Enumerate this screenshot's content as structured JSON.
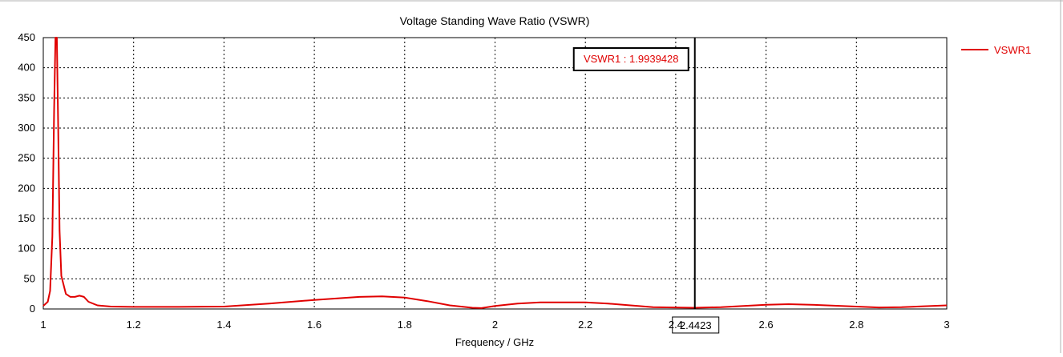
{
  "chart_data": {
    "type": "line",
    "title": "Voltage Standing Wave Ratio (VSWR)",
    "xlabel": "Frequency / GHz",
    "ylabel": "",
    "xlim": [
      1,
      3
    ],
    "ylim": [
      0,
      450
    ],
    "x_ticks": [
      "1",
      "1.2",
      "1.4",
      "1.6",
      "1.8",
      "2",
      "2.2",
      "2.4",
      "2.6",
      "2.8",
      "3"
    ],
    "y_ticks": [
      "0",
      "50",
      "100",
      "150",
      "200",
      "250",
      "300",
      "350",
      "400",
      "450"
    ],
    "grid": true,
    "legend_position": "right",
    "series": [
      {
        "name": "VSWR1",
        "color": "#e00000",
        "points": [
          [
            1.0,
            5
          ],
          [
            1.01,
            12
          ],
          [
            1.015,
            30
          ],
          [
            1.02,
            120
          ],
          [
            1.024,
            330
          ],
          [
            1.027,
            450
          ],
          [
            1.03,
            450
          ],
          [
            1.033,
            300
          ],
          [
            1.036,
            130
          ],
          [
            1.04,
            55
          ],
          [
            1.05,
            25
          ],
          [
            1.06,
            20
          ],
          [
            1.07,
            20
          ],
          [
            1.08,
            22
          ],
          [
            1.09,
            20
          ],
          [
            1.1,
            12
          ],
          [
            1.12,
            6
          ],
          [
            1.15,
            4
          ],
          [
            1.2,
            3.5
          ],
          [
            1.3,
            3.5
          ],
          [
            1.4,
            4
          ],
          [
            1.5,
            9
          ],
          [
            1.6,
            15
          ],
          [
            1.7,
            20
          ],
          [
            1.75,
            21
          ],
          [
            1.8,
            19
          ],
          [
            1.85,
            13
          ],
          [
            1.9,
            6
          ],
          [
            1.95,
            2
          ],
          [
            1.97,
            1.5
          ],
          [
            2.0,
            5
          ],
          [
            2.05,
            9
          ],
          [
            2.1,
            11
          ],
          [
            2.2,
            11
          ],
          [
            2.25,
            9
          ],
          [
            2.3,
            6
          ],
          [
            2.35,
            3
          ],
          [
            2.4423,
            1.99
          ],
          [
            2.5,
            3
          ],
          [
            2.55,
            5
          ],
          [
            2.6,
            7
          ],
          [
            2.65,
            8
          ],
          [
            2.7,
            7
          ],
          [
            2.8,
            4
          ],
          [
            2.85,
            2.5
          ],
          [
            2.9,
            3
          ],
          [
            3.0,
            6
          ]
        ]
      }
    ],
    "marker": {
      "x": 2.4423,
      "x_label": "2.4423",
      "label": "VSWR1 : 1.9939428"
    }
  }
}
